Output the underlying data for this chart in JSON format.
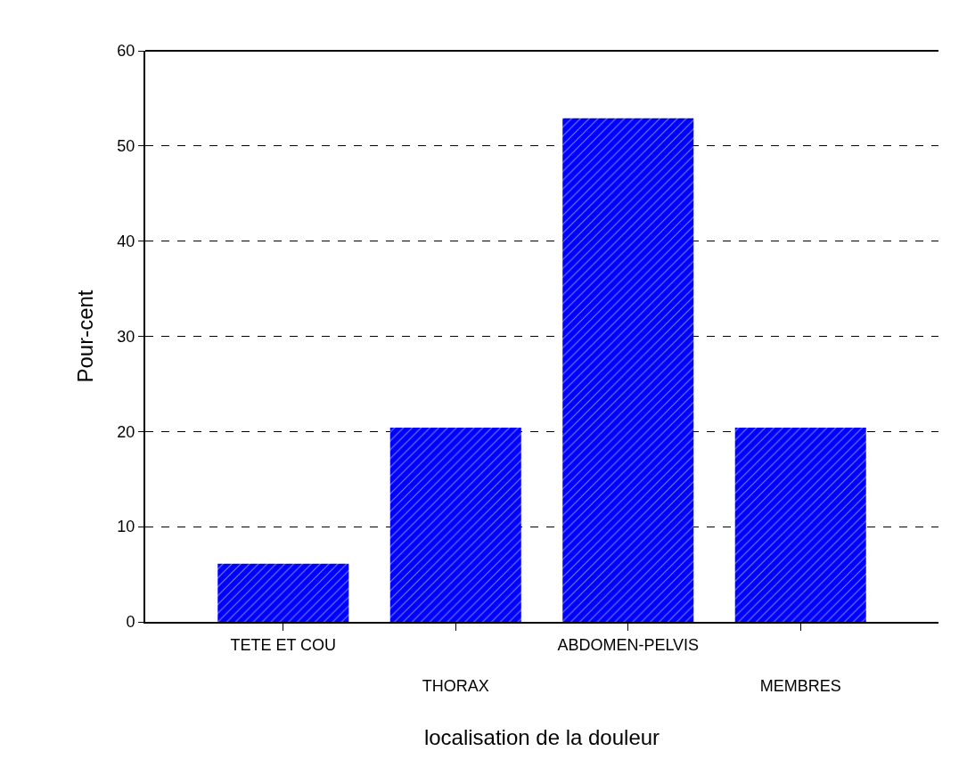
{
  "chart_data": {
    "type": "bar",
    "xlabel": "localisation de la douleur",
    "ylabel": "Pour-cent",
    "categories": [
      "TETE ET COU",
      "THORAX",
      "ABDOMEN-PELVIS",
      "MEMBRES"
    ],
    "values": [
      6.1,
      20.4,
      52.9,
      20.4
    ],
    "color": "#0000ff",
    "ylim": [
      0,
      60
    ],
    "yticks": [
      0,
      10,
      20,
      30,
      40,
      50,
      60
    ],
    "grid": "y"
  }
}
